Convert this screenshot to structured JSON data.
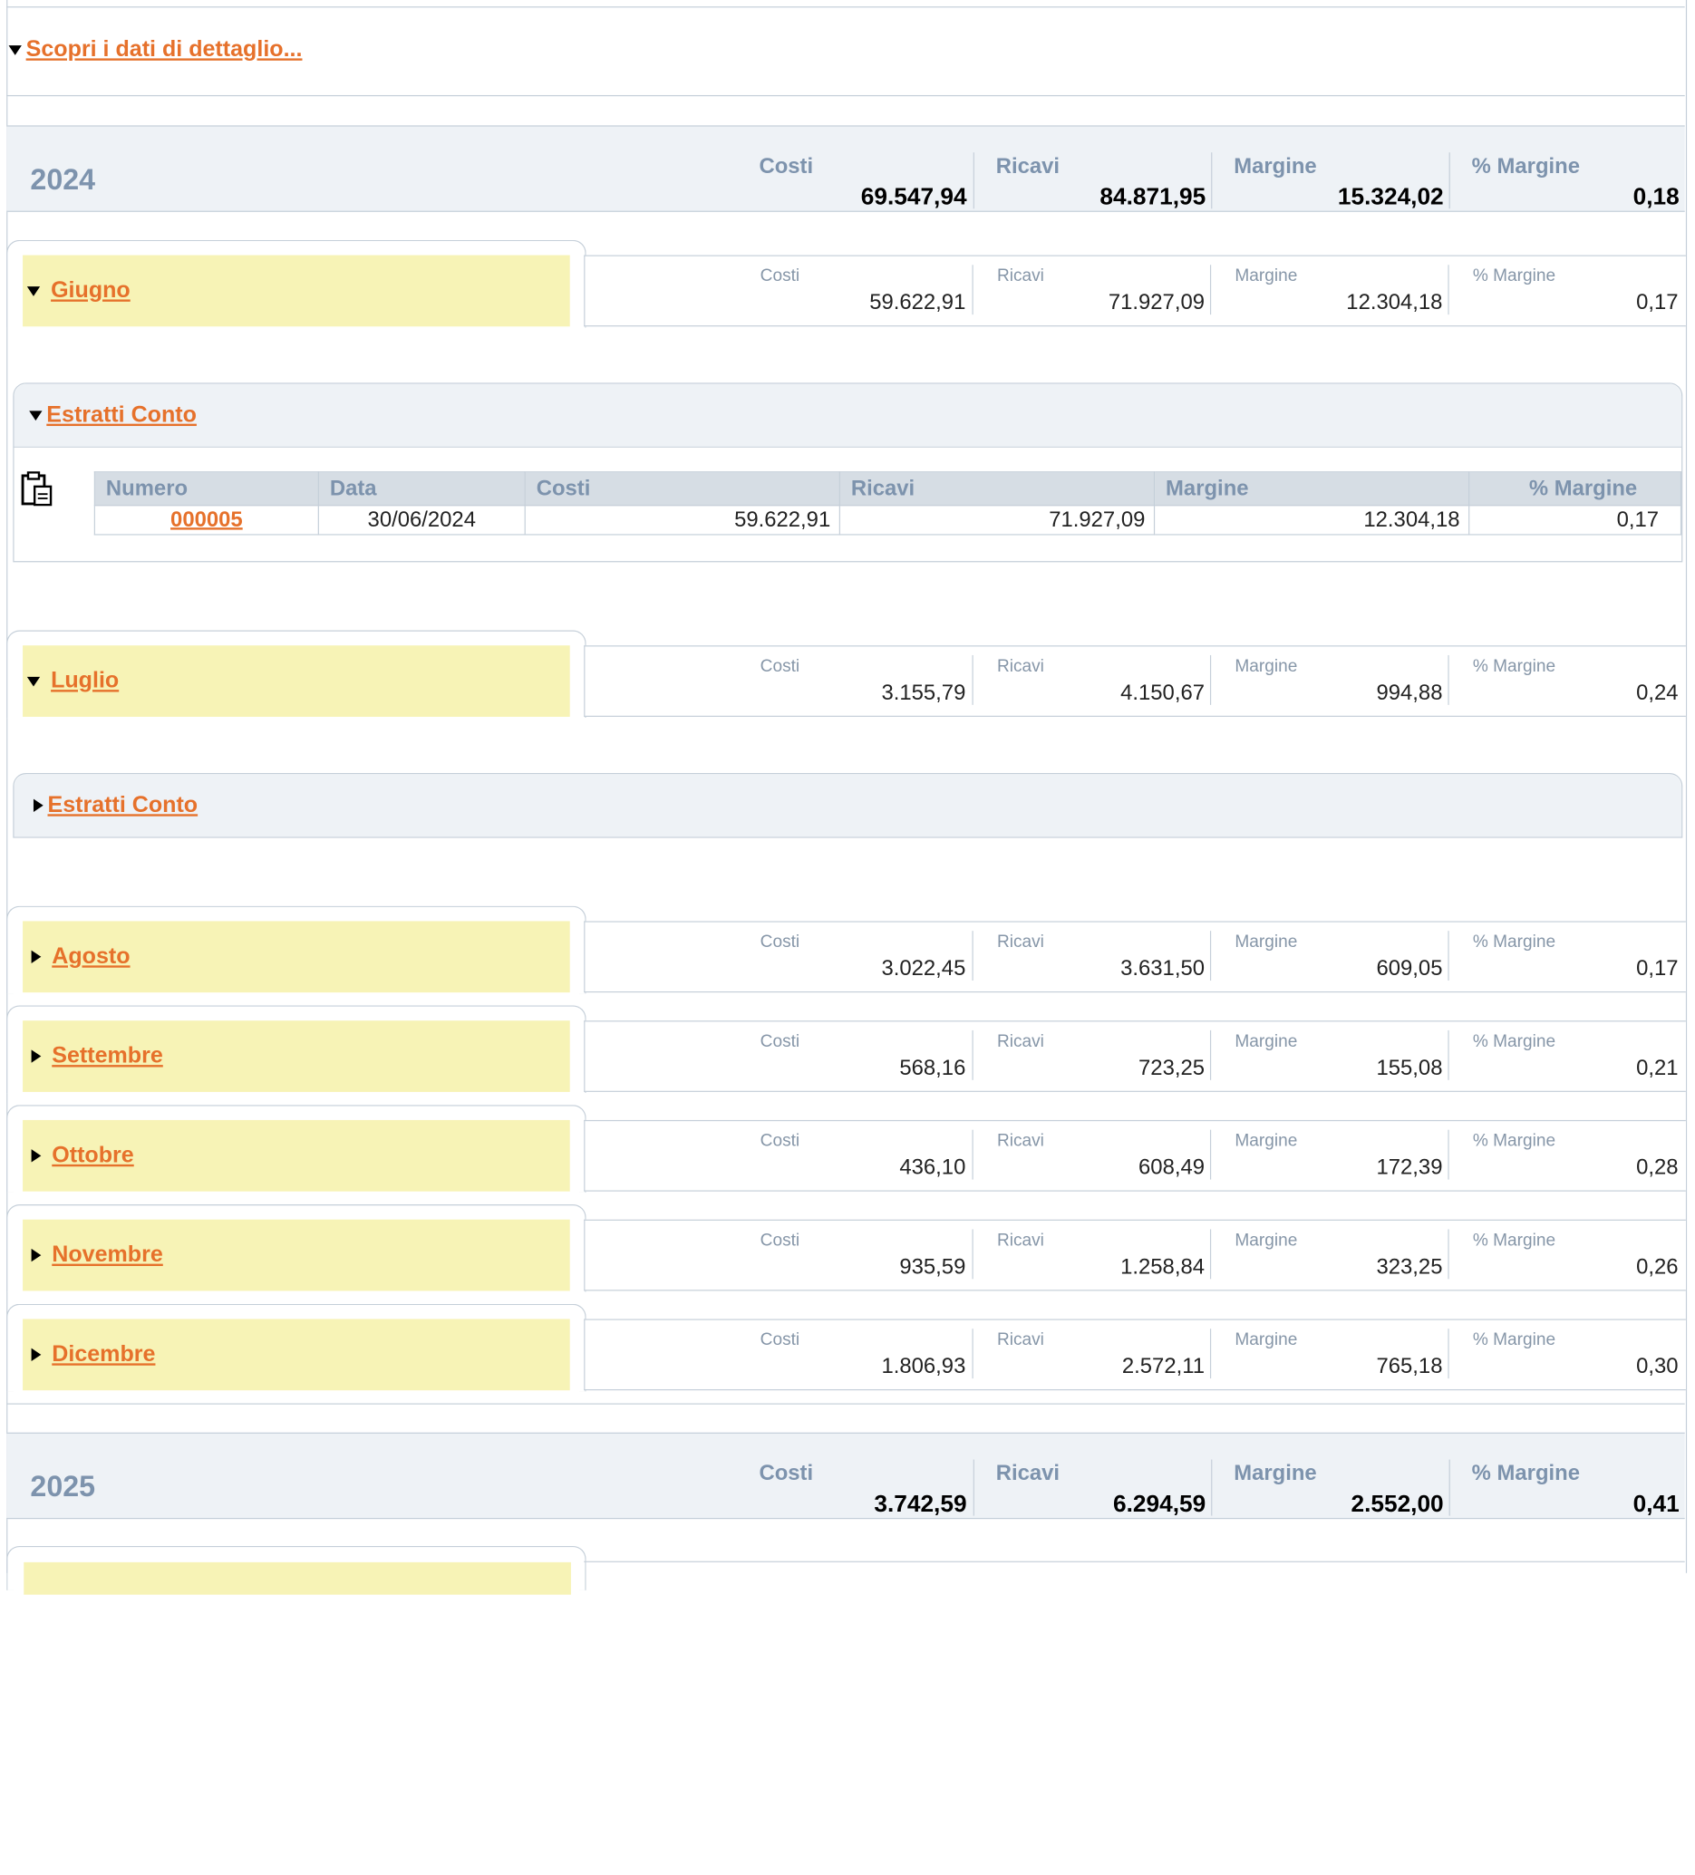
{
  "detail_link": "Scopri i dati di dettaglio...",
  "kpi_labels": {
    "costi": "Costi",
    "ricavi": "Ricavi",
    "margine": "Margine",
    "perc_margine": "% Margine"
  },
  "years": [
    {
      "year": "2024",
      "costi": "69.547,94",
      "ricavi": "84.871,95",
      "margine": "15.324,02",
      "perc_margine": "0,18"
    },
    {
      "year": "2025",
      "costi": "3.742,59",
      "ricavi": "6.294,59",
      "margine": "2.552,00",
      "perc_margine": "0,41"
    }
  ],
  "months": [
    {
      "name": "Giugno",
      "expanded": true,
      "costi": "59.622,91",
      "ricavi": "71.927,09",
      "margine": "12.304,18",
      "perc_margine": "0,17"
    },
    {
      "name": "Luglio",
      "expanded": true,
      "costi": "3.155,79",
      "ricavi": "4.150,67",
      "margine": "994,88",
      "perc_margine": "0,24"
    },
    {
      "name": "Agosto",
      "expanded": false,
      "costi": "3.022,45",
      "ricavi": "3.631,50",
      "margine": "609,05",
      "perc_margine": "0,17"
    },
    {
      "name": "Settembre",
      "expanded": false,
      "costi": "568,16",
      "ricavi": "723,25",
      "margine": "155,08",
      "perc_margine": "0,21"
    },
    {
      "name": "Ottobre",
      "expanded": false,
      "costi": "436,10",
      "ricavi": "608,49",
      "margine": "172,39",
      "perc_margine": "0,28"
    },
    {
      "name": "Novembre",
      "expanded": false,
      "costi": "935,59",
      "ricavi": "1.258,84",
      "margine": "323,25",
      "perc_margine": "0,26"
    },
    {
      "name": "Dicembre",
      "expanded": false,
      "costi": "1.806,93",
      "ricavi": "2.572,11",
      "margine": "765,18",
      "perc_margine": "0,30"
    }
  ],
  "estratti": {
    "title": "Estratti Conto",
    "columns": [
      "Numero",
      "Data",
      "Costi",
      "Ricavi",
      "Margine",
      "% Margine"
    ],
    "rows": [
      {
        "numero": "000005",
        "data": "30/06/2024",
        "costi": "59.622,91",
        "ricavi": "71.927,09",
        "margine": "12.304,18",
        "perc_margine": "0,17"
      }
    ]
  }
}
